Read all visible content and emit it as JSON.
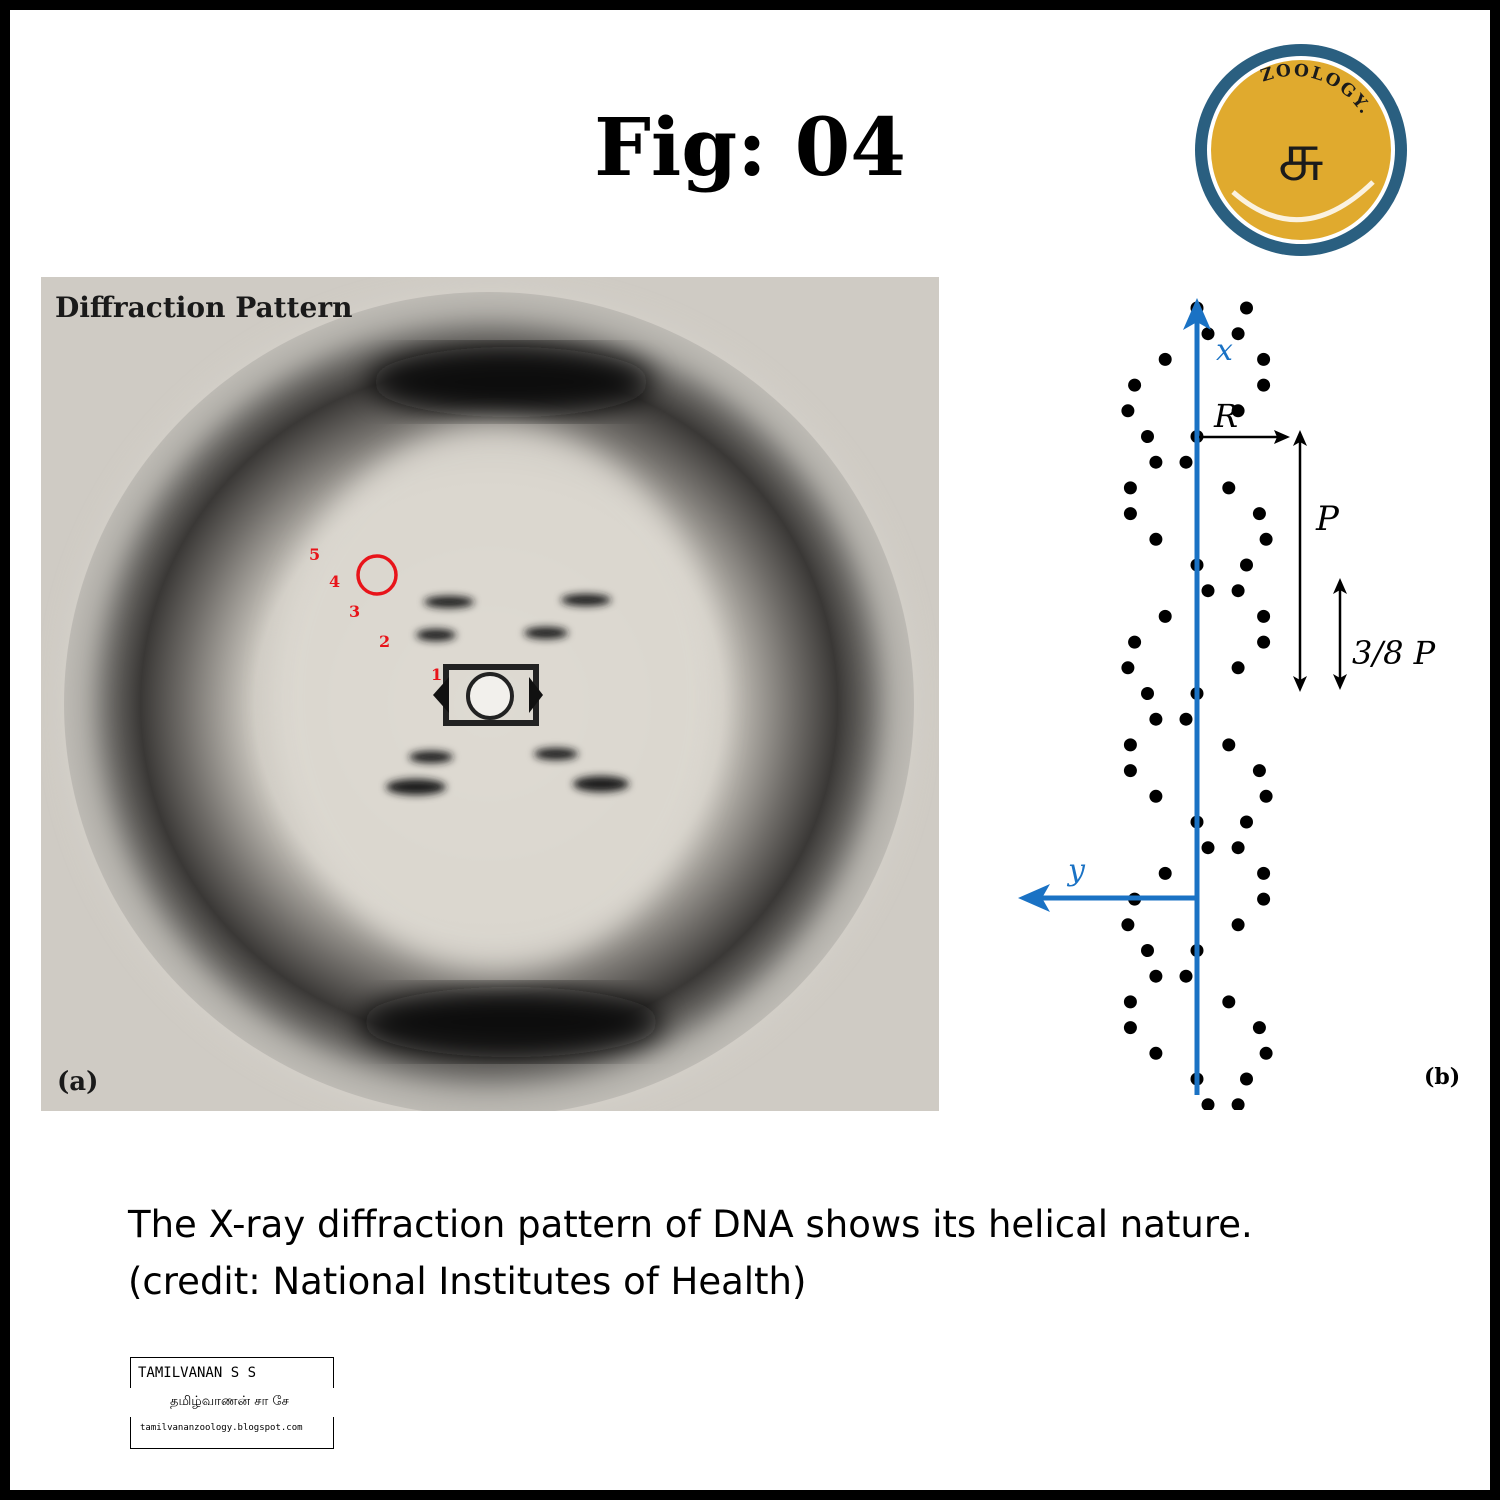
{
  "figure": {
    "title": "Fig: 04"
  },
  "logo": {
    "text": "ZOOLOGY.",
    "glyph": "சு",
    "colors": {
      "ring": "#2a5f80",
      "fill": "#e0aa2e",
      "accent": "#ffffff"
    }
  },
  "panel_a": {
    "heading": "Diffraction Pattern",
    "label": "(a)",
    "markers": [
      "1",
      "2",
      "3",
      "4",
      "5"
    ],
    "marker_color": "#e8141a"
  },
  "panel_b": {
    "label": "(b)",
    "axis_x_label": "x",
    "axis_y_label": "y",
    "radius_label": "R",
    "pitch_label": "P",
    "fraction_label": "3/8 P",
    "axis_color": "#1a72c4"
  },
  "caption": {
    "line1": "The X-ray diffraction pattern of DNA shows its helical nature.",
    "line2": "(credit: National Institutes of Health)"
  },
  "credit": {
    "name": "TAMILVANAN S S",
    "tamil_name": "தமிழ்வாணன் சா சே",
    "url": "tamilvananzoology.blogspot.com"
  }
}
